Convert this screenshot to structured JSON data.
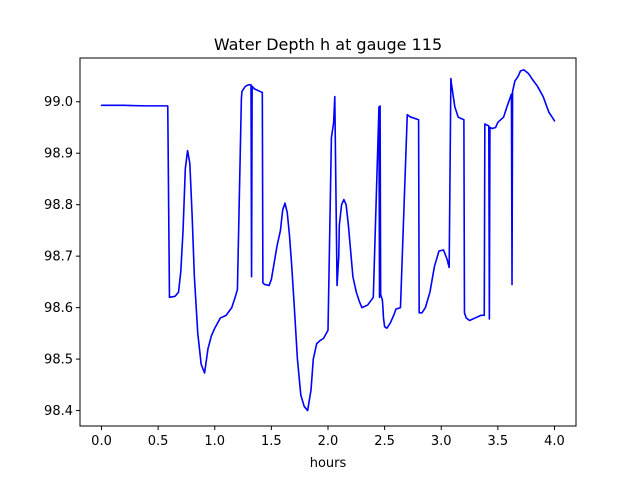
{
  "chart_data": {
    "type": "line",
    "title": "Water Depth h at gauge 115",
    "xlabel": "hours",
    "ylabel": "",
    "xlim": [
      -0.19,
      4.19
    ],
    "ylim": [
      98.37,
      99.085
    ],
    "grid": false,
    "legend": "none",
    "xticks": [
      0.0,
      0.5,
      1.0,
      1.5,
      2.0,
      2.5,
      3.0,
      3.5,
      4.0
    ],
    "xtick_labels": [
      "0.0",
      "0.5",
      "1.0",
      "1.5",
      "2.0",
      "2.5",
      "3.0",
      "3.5",
      "4.0"
    ],
    "yticks": [
      98.4,
      98.5,
      98.6,
      98.7,
      98.8,
      98.9,
      99.0
    ],
    "ytick_labels": [
      "98.4",
      "98.5",
      "98.6",
      "98.7",
      "98.8",
      "98.9",
      "99.0"
    ],
    "series": [
      {
        "name": "",
        "color": "#0000ff",
        "x": [
          0.0,
          0.2,
          0.4,
          0.58,
          0.585,
          0.6,
          0.65,
          0.68,
          0.7,
          0.72,
          0.74,
          0.76,
          0.78,
          0.8,
          0.82,
          0.85,
          0.88,
          0.91,
          0.94,
          0.97,
          1.0,
          1.05,
          1.1,
          1.15,
          1.18,
          1.2,
          1.235,
          1.24,
          1.27,
          1.3,
          1.32,
          1.325,
          1.33,
          1.35,
          1.4,
          1.42,
          1.425,
          1.44,
          1.48,
          1.5,
          1.55,
          1.58,
          1.6,
          1.62,
          1.64,
          1.66,
          1.68,
          1.7,
          1.73,
          1.76,
          1.79,
          1.82,
          1.85,
          1.87,
          1.9,
          1.93,
          1.96,
          2.0,
          2.03,
          2.05,
          2.06,
          2.08,
          2.095,
          2.1,
          2.12,
          2.14,
          2.16,
          2.18,
          2.2,
          2.22,
          2.25,
          2.28,
          2.3,
          2.35,
          2.4,
          2.45,
          2.455,
          2.46,
          2.465,
          2.48,
          2.485,
          2.49,
          2.5,
          2.52,
          2.55,
          2.58,
          2.6,
          2.64,
          2.7,
          2.73,
          2.735,
          2.8,
          2.805,
          2.83,
          2.86,
          2.9,
          2.94,
          2.98,
          3.02,
          3.05,
          3.07,
          3.085,
          3.09,
          3.1,
          3.12,
          3.15,
          3.2,
          3.205,
          3.22,
          3.25,
          3.3,
          3.35,
          3.38,
          3.385,
          3.4,
          3.42,
          3.425,
          3.43,
          3.45,
          3.48,
          3.5,
          3.55,
          3.58,
          3.62,
          3.625,
          3.63,
          3.64,
          3.65,
          3.68,
          3.7,
          3.73,
          3.77,
          3.8,
          3.85,
          3.9,
          3.95,
          4.0
        ],
        "y": [
          98.993,
          98.993,
          98.992,
          98.992,
          98.992,
          98.62,
          98.622,
          98.63,
          98.67,
          98.75,
          98.87,
          98.905,
          98.88,
          98.78,
          98.66,
          98.55,
          98.49,
          98.473,
          98.52,
          98.545,
          98.56,
          98.58,
          98.585,
          98.6,
          98.62,
          98.635,
          99.005,
          99.02,
          99.03,
          99.033,
          99.033,
          98.66,
          99.03,
          99.025,
          99.02,
          99.018,
          98.648,
          98.645,
          98.643,
          98.655,
          98.72,
          98.75,
          98.79,
          98.803,
          98.785,
          98.74,
          98.68,
          98.61,
          98.5,
          98.43,
          98.408,
          98.4,
          98.44,
          98.5,
          98.53,
          98.536,
          98.54,
          98.556,
          98.93,
          98.96,
          99.01,
          98.643,
          98.7,
          98.76,
          98.8,
          98.81,
          98.8,
          98.76,
          98.71,
          98.66,
          98.63,
          98.61,
          98.6,
          98.605,
          98.62,
          98.99,
          98.62,
          98.992,
          98.625,
          98.615,
          98.6,
          98.58,
          98.563,
          98.56,
          98.57,
          98.585,
          98.597,
          98.6,
          98.975,
          98.97,
          98.97,
          98.965,
          98.59,
          98.59,
          98.6,
          98.63,
          98.68,
          98.71,
          98.712,
          98.695,
          98.678,
          99.045,
          99.035,
          99.02,
          98.99,
          98.97,
          98.965,
          98.59,
          98.58,
          98.575,
          98.58,
          98.585,
          98.585,
          98.957,
          98.955,
          98.953,
          98.578,
          98.95,
          98.948,
          98.95,
          98.96,
          98.97,
          98.99,
          99.015,
          98.645,
          99.02,
          99.03,
          99.04,
          99.05,
          99.06,
          99.062,
          99.055,
          99.045,
          99.03,
          99.01,
          98.98,
          98.963
        ]
      }
    ]
  }
}
